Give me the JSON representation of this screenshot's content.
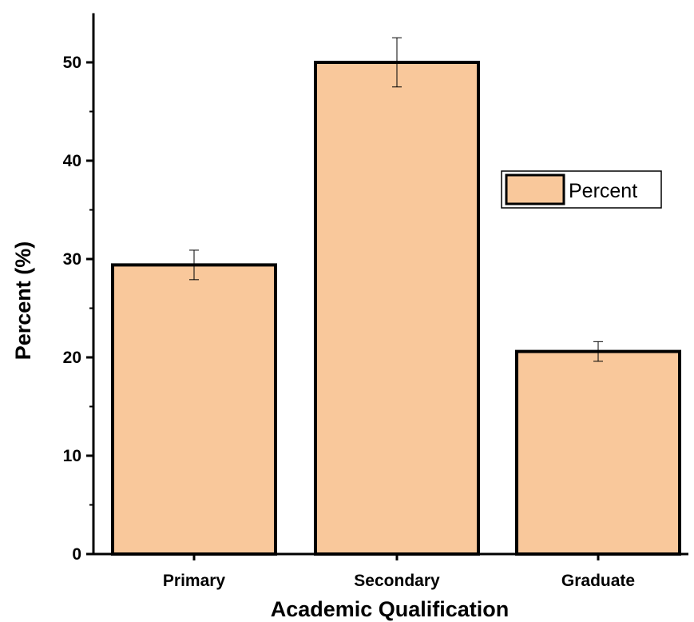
{
  "chart_data": {
    "type": "bar",
    "title": "",
    "xlabel": "Academic Qualification",
    "ylabel": "Percent (%)",
    "categories": [
      "Primary",
      "Secondary",
      "Graduate"
    ],
    "series": [
      {
        "name": "Percent",
        "values": [
          29.4,
          50.0,
          20.6
        ],
        "errors": [
          1.5,
          2.5,
          1.0
        ]
      }
    ],
    "ylim": [
      0,
      55
    ],
    "yticks": [
      0,
      10,
      20,
      30,
      40,
      50
    ],
    "ytick_labels": [
      "0",
      "10",
      "20",
      "30",
      "40",
      "50"
    ],
    "grid": false,
    "legend": {
      "position": "right",
      "entries": [
        "Percent"
      ]
    },
    "bar_color": "#F9C89B",
    "edge_color": "#000000"
  }
}
